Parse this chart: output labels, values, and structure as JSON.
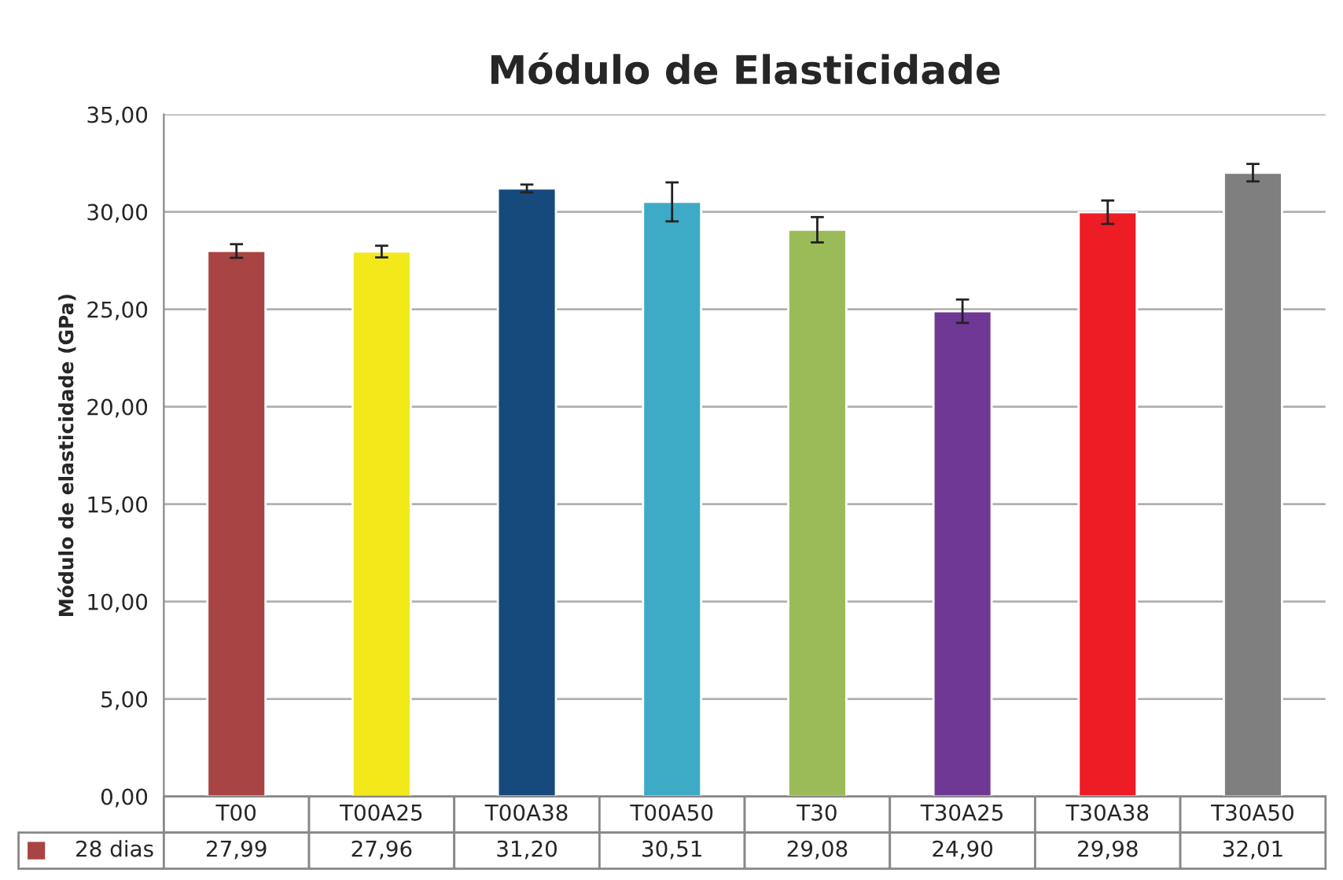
{
  "chart_data": {
    "type": "bar",
    "title": "Módulo de Elasticidade",
    "ylabel": "Módulo de elasticidade (GPa)",
    "categories": [
      "T00",
      "T00A25",
      "T00A38",
      "T00A50",
      "T30",
      "T30A25",
      "T30A38",
      "T30A50"
    ],
    "series": [
      {
        "name": "28 dias",
        "color": "#a94444",
        "colors": [
          "#a94444",
          "#f2e81a",
          "#174a7c",
          "#3eabc6",
          "#9bbb59",
          "#6f3895",
          "#ee1c25",
          "#7f7f7f"
        ],
        "values": [
          27.99,
          27.96,
          31.2,
          30.51,
          29.08,
          24.9,
          29.98,
          32.01
        ],
        "value_labels": [
          "27,99",
          "27,96",
          "31,20",
          "30,51",
          "29,08",
          "24,90",
          "29,98",
          "32,01"
        ],
        "errors": [
          0.35,
          0.3,
          0.2,
          1.0,
          0.65,
          0.6,
          0.6,
          0.45
        ]
      }
    ],
    "ylim": [
      0,
      35
    ],
    "yticks": [
      {
        "value": 0,
        "label": "0,00"
      },
      {
        "value": 5,
        "label": "5,00"
      },
      {
        "value": 10,
        "label": "10,00"
      },
      {
        "value": 15,
        "label": "15,00"
      },
      {
        "value": 20,
        "label": "20,00"
      },
      {
        "value": 25,
        "label": "25,00"
      },
      {
        "value": 30,
        "label": "30,00"
      },
      {
        "value": 35,
        "label": "35,00"
      }
    ],
    "grid": "y"
  }
}
